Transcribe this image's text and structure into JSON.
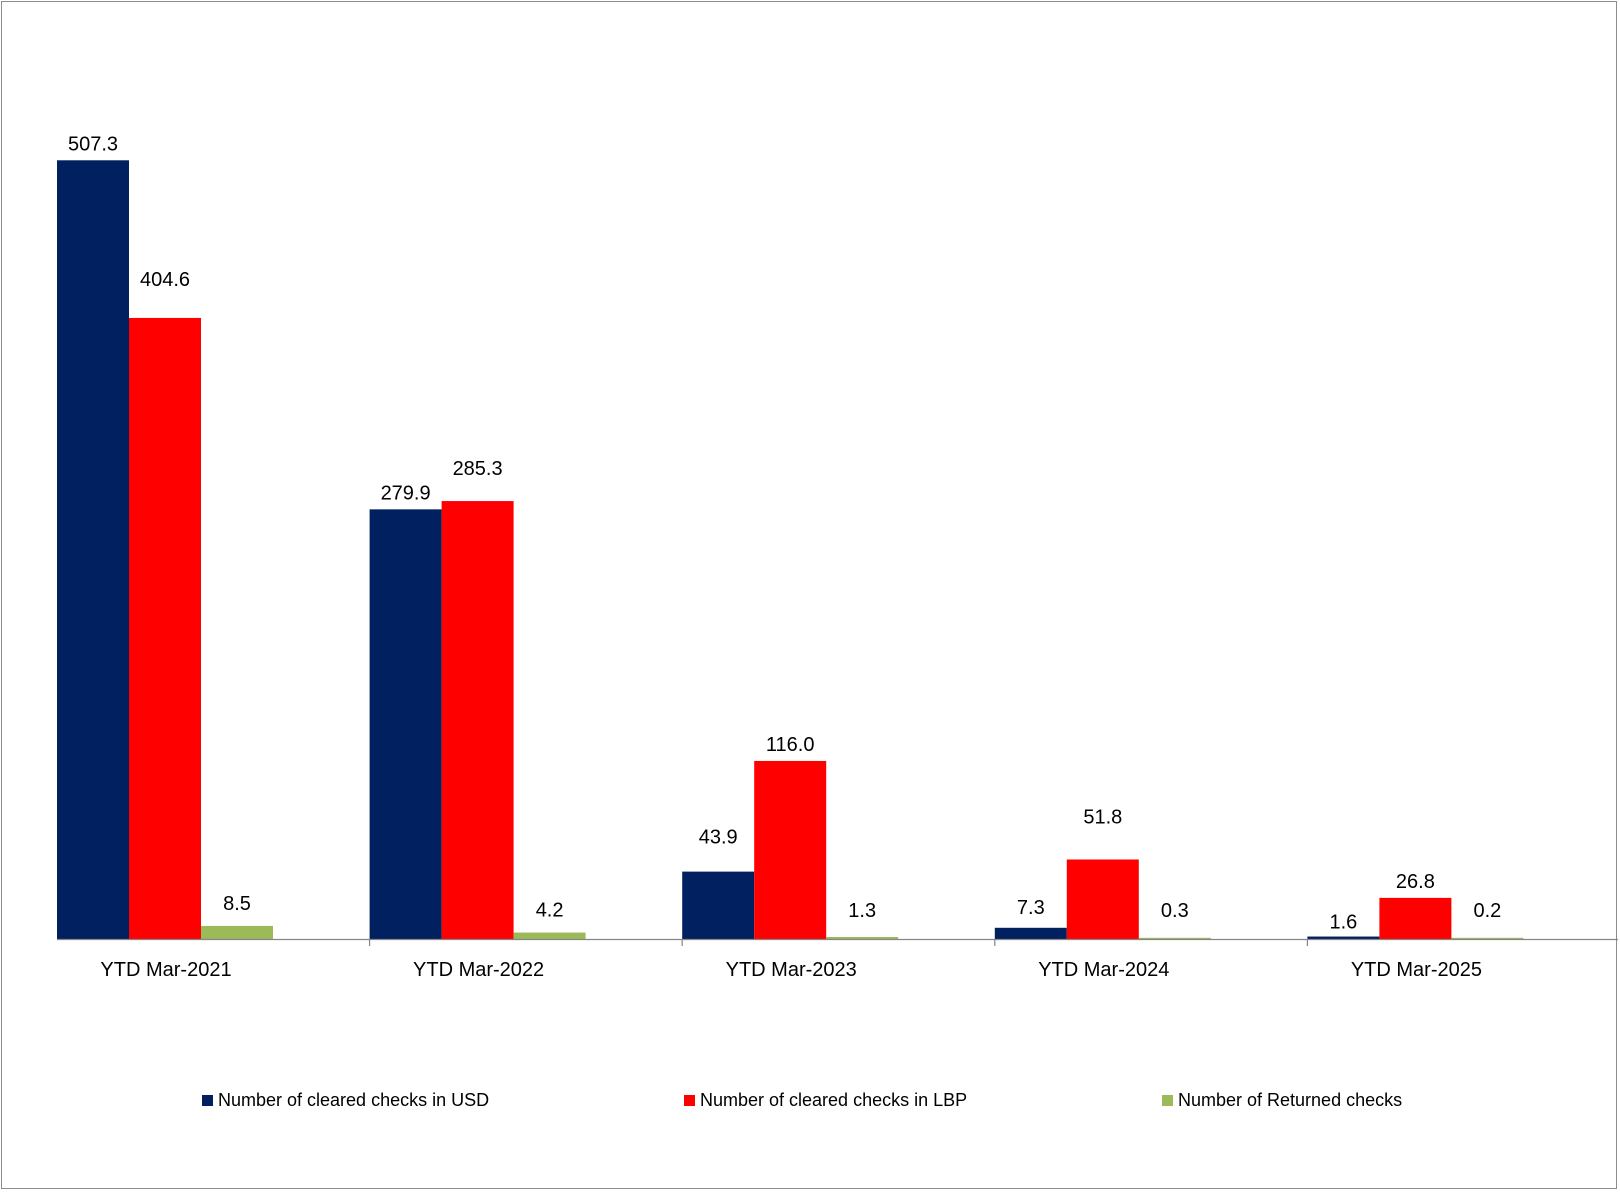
{
  "chart_data": {
    "type": "bar",
    "title": "",
    "xlabel": "",
    "ylabel": "",
    "ylim": [
      0,
      520
    ],
    "grid": false,
    "legend_position": "bottom",
    "categories": [
      "YTD Mar-2021",
      "YTD Mar-2022",
      "YTD Mar-2023",
      "YTD Mar-2024",
      "YTD Mar-2025"
    ],
    "series": [
      {
        "name": "Number of cleared checks in USD",
        "color": "#002060",
        "values": [
          507.3,
          279.9,
          43.9,
          7.3,
          1.6
        ],
        "labels": [
          "507.3",
          "279.9",
          "43.9",
          "7.3",
          "1.6"
        ]
      },
      {
        "name": "Number of cleared checks in LBP",
        "color": "#ff0000",
        "values": [
          404.6,
          285.3,
          116.0,
          51.8,
          26.8
        ],
        "labels": [
          "404.6",
          "285.3",
          "116.0",
          "51.8",
          "26.8"
        ]
      },
      {
        "name": "Number of Returned checks",
        "color": "#9bbb59",
        "values": [
          8.5,
          4.2,
          1.3,
          0.3,
          0.2
        ],
        "labels": [
          "8.5",
          "4.2",
          "1.3",
          "0.3",
          "0.2"
        ]
      }
    ]
  }
}
